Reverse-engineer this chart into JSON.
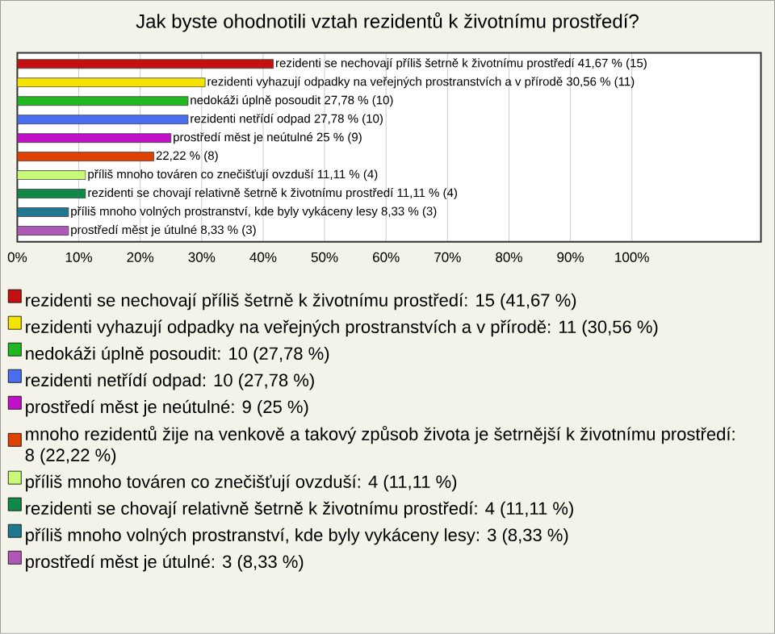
{
  "chart_data": {
    "type": "bar",
    "orientation": "horizontal",
    "title": "Jak byste ohodnotili vztah rezidentů k životnímu prostředí?",
    "categories": [
      null,
      null,
      null,
      null,
      null,
      null,
      null,
      null,
      null,
      null
    ],
    "series": [
      {
        "name": "rezidenti se nechovají příliš šetrně k životnímu prostředí: 15 (41,67 %)",
        "color": "#c41010",
        "values": [
          41.67,
          null,
          null,
          null,
          null,
          null,
          null,
          null,
          null,
          null
        ],
        "value_labels": [
          "rezidenti se nechovají příliš šetrně k životnímu prostředí 41,67 % (15)",
          null,
          null,
          null,
          null,
          null,
          null,
          null,
          null,
          null
        ]
      },
      {
        "name": "rezidenti vyhazují odpadky na veřejných prostranstvích a v přírodě: 11 (30,56 %)",
        "color": "#f5e400",
        "values": [
          null,
          30.56,
          null,
          null,
          null,
          null,
          null,
          null,
          null,
          null
        ],
        "value_labels": [
          null,
          "rezidenti vyhazují odpadky na veřejných prostranstvích a v přírodě 30,56 % (11)",
          null,
          null,
          null,
          null,
          null,
          null,
          null,
          null
        ]
      },
      {
        "name": "nedokáži úplně posoudit: 10 (27,78 %)",
        "color": "#20b820",
        "values": [
          null,
          null,
          27.78,
          null,
          null,
          null,
          null,
          null,
          null,
          null
        ],
        "value_labels": [
          null,
          null,
          "nedokáži úplně posoudit 27,78 % (10)",
          null,
          null,
          null,
          null,
          null,
          null,
          null
        ]
      },
      {
        "name": "rezidenti netřídí odpad: 10 (27,78 %)",
        "color": "#4a6ef0",
        "values": [
          null,
          null,
          null,
          27.78,
          null,
          null,
          null,
          null,
          null,
          null
        ],
        "value_labels": [
          null,
          null,
          null,
          "rezidenti netřídí odpad 27,78 % (10)",
          null,
          null,
          null,
          null,
          null,
          null
        ]
      },
      {
        "name": "prostředí měst je neútulné: 9 (25 %)",
        "color": "#c010c8",
        "values": [
          null,
          null,
          null,
          null,
          25,
          null,
          null,
          null,
          null,
          null
        ],
        "value_labels": [
          null,
          null,
          null,
          null,
          "prostředí měst je neútulné 25 % (9)",
          null,
          null,
          null,
          null,
          null
        ]
      },
      {
        "name": "mnoho rezidentů žije na venkově a takový způsob života je šetrnější k životnímu prostředí: 8 (22,22 %)",
        "color": "#e04000",
        "values": [
          null,
          null,
          null,
          null,
          null,
          22.22,
          null,
          null,
          null,
          null
        ],
        "value_labels": [
          null,
          null,
          null,
          null,
          null,
          "22,22 % (8)",
          null,
          null,
          null,
          null
        ]
      },
      {
        "name": "příliš mnoho továren co znečišťují ovzduší: 4 (11,11 %)",
        "color": "#c8f878",
        "values": [
          null,
          null,
          null,
          null,
          null,
          null,
          11.11,
          null,
          null,
          null
        ],
        "value_labels": [
          null,
          null,
          null,
          null,
          null,
          null,
          "příliš mnoho továren co znečišťují ovzduší 11,11 % (4)",
          null,
          null,
          null
        ]
      },
      {
        "name": "rezidenti se chovají relativně šetrně k životnímu prostředí: 4 (11,11 %)",
        "color": "#108848",
        "values": [
          null,
          null,
          null,
          null,
          null,
          null,
          null,
          11.11,
          null,
          null
        ],
        "value_labels": [
          null,
          null,
          null,
          null,
          null,
          null,
          null,
          "rezidenti se chovají relativně šetrně k životnímu prostředí 11,11 % (4)",
          null,
          null
        ]
      },
      {
        "name": "příliš mnoho volných prostranství, kde byly vykáceny lesy: 3 (8,33 %)",
        "color": "#207890",
        "values": [
          null,
          null,
          null,
          null,
          null,
          null,
          null,
          null,
          8.33,
          null
        ],
        "value_labels": [
          null,
          null,
          null,
          null,
          null,
          null,
          null,
          null,
          "příliš mnoho volných prostranství, kde byly vykáceny lesy 8,33 % (3)",
          null
        ]
      },
      {
        "name": "prostředí měst je útulné: 3 (8,33 %)",
        "color": "#b058b8",
        "values": [
          null,
          null,
          null,
          null,
          null,
          null,
          null,
          null,
          null,
          8.33
        ],
        "value_labels": [
          null,
          null,
          null,
          null,
          null,
          null,
          null,
          null,
          null,
          "prostředí měst je útulné 8,33 % (3)"
        ]
      }
    ],
    "xlim": [
      0,
      121
    ],
    "xticks": [
      {
        "value": 0,
        "label": "0%"
      },
      {
        "value": 10,
        "label": "10%"
      },
      {
        "value": 20,
        "label": "20%"
      },
      {
        "value": 30,
        "label": "30%"
      },
      {
        "value": 40,
        "label": "40%"
      },
      {
        "value": 50,
        "label": "50%"
      },
      {
        "value": 60,
        "label": "60%"
      },
      {
        "value": 70,
        "label": "70%"
      },
      {
        "value": 80,
        "label": "80%"
      },
      {
        "value": 90,
        "label": "90%"
      },
      {
        "value": 100,
        "label": "100%"
      }
    ],
    "grid": "x",
    "legend": "bottom",
    "tick_labels": "x"
  }
}
